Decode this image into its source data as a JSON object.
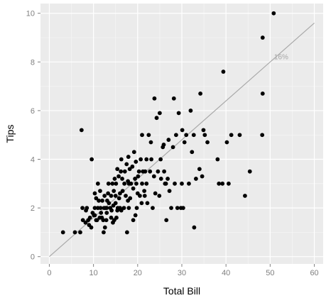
{
  "chart_data": {
    "type": "scatter",
    "title": "",
    "xlabel": "Total Bill",
    "ylabel": "Tips",
    "xlim": [
      -2,
      62
    ],
    "ylim": [
      -0.3,
      10.4
    ],
    "x_ticks": [
      0,
      10,
      20,
      30,
      40,
      50,
      60
    ],
    "y_ticks": [
      0,
      2,
      4,
      6,
      8,
      10
    ],
    "grid": true,
    "legend": "none",
    "colors": {
      "panel_background": "#ebebeb",
      "grid_major": "#ffffff",
      "grid_minor": "#f5f5f5",
      "points": "#000000",
      "reference_line": "#a9a9a9",
      "tick_label": "#7f7f7f",
      "annotation": "#a6a6a6"
    },
    "reference_line": {
      "slope": 0.16,
      "intercept": 0,
      "x_range": [
        0,
        60
      ],
      "label": "16%",
      "label_position": [
        52.5,
        8.2
      ]
    },
    "points": [
      [
        3.1,
        1.0
      ],
      [
        5.8,
        1.0
      ],
      [
        7.0,
        1.0
      ],
      [
        7.3,
        5.2
      ],
      [
        7.5,
        2.0
      ],
      [
        7.6,
        1.5
      ],
      [
        8.2,
        1.4
      ],
      [
        8.3,
        1.9
      ],
      [
        8.5,
        2.0
      ],
      [
        8.8,
        1.5
      ],
      [
        9.0,
        1.3
      ],
      [
        9.2,
        1.6
      ],
      [
        9.5,
        1.2
      ],
      [
        9.6,
        4.0
      ],
      [
        9.8,
        1.8
      ],
      [
        10.1,
        1.7
      ],
      [
        10.3,
        2.0
      ],
      [
        10.3,
        1.7
      ],
      [
        10.6,
        1.5
      ],
      [
        10.3,
        2.6
      ],
      [
        10.6,
        2.4
      ],
      [
        10.8,
        1.5
      ],
      [
        11.0,
        2.0
      ],
      [
        11.0,
        3.0
      ],
      [
        11.2,
        2.3
      ],
      [
        11.4,
        1.6
      ],
      [
        11.6,
        2.0
      ],
      [
        11.7,
        1.8
      ],
      [
        11.9,
        1.6
      ],
      [
        12.0,
        2.3
      ],
      [
        12.2,
        1.5
      ],
      [
        12.4,
        2.0
      ],
      [
        12.5,
        2.5
      ],
      [
        12.6,
        1.2
      ],
      [
        12.7,
        2.0
      ],
      [
        12.9,
        1.5
      ],
      [
        13.0,
        2.0
      ],
      [
        13.0,
        1.8
      ],
      [
        13.1,
        2.3
      ],
      [
        13.3,
        2.6
      ],
      [
        13.4,
        3.0
      ],
      [
        13.5,
        2.2
      ],
      [
        13.8,
        2.0
      ],
      [
        14.0,
        1.6
      ],
      [
        14.0,
        2.5
      ],
      [
        14.1,
        1.9
      ],
      [
        14.3,
        3.0
      ],
      [
        14.5,
        2.1
      ],
      [
        14.6,
        2.7
      ],
      [
        14.7,
        1.5
      ],
      [
        14.8,
        3.2
      ],
      [
        15.0,
        2.2
      ],
      [
        15.0,
        2.5
      ],
      [
        15.1,
        3.0
      ],
      [
        15.2,
        1.6
      ],
      [
        15.4,
        3.6
      ],
      [
        15.5,
        2.0
      ],
      [
        15.7,
        3.3
      ],
      [
        15.8,
        2.4
      ],
      [
        16.0,
        2.0
      ],
      [
        16.0,
        2.6
      ],
      [
        16.2,
        3.5
      ],
      [
        16.3,
        1.9
      ],
      [
        16.3,
        4.0
      ],
      [
        16.5,
        3.2
      ],
      [
        16.6,
        2.7
      ],
      [
        16.9,
        2.0
      ],
      [
        17.0,
        3.0
      ],
      [
        17.1,
        3.5
      ],
      [
        17.3,
        2.5
      ],
      [
        17.5,
        3.8
      ],
      [
        17.6,
        1.0
      ],
      [
        17.8,
        2.3
      ],
      [
        17.8,
        3.1
      ],
      [
        18.0,
        3.0
      ],
      [
        18.0,
        2.0
      ],
      [
        18.2,
        3.6
      ],
      [
        18.3,
        2.4
      ],
      [
        18.5,
        3.0
      ],
      [
        18.8,
        3.7
      ],
      [
        19.0,
        1.5
      ],
      [
        19.0,
        2.8
      ],
      [
        19.2,
        4.3
      ],
      [
        19.4,
        3.2
      ],
      [
        19.5,
        1.7
      ],
      [
        19.7,
        3.0
      ],
      [
        19.8,
        2.0
      ],
      [
        20.0,
        2.6
      ],
      [
        20.1,
        3.3
      ],
      [
        20.3,
        3.5
      ],
      [
        20.5,
        2.5
      ],
      [
        20.7,
        4.0
      ],
      [
        20.9,
        2.2
      ],
      [
        21.0,
        3.0
      ],
      [
        21.0,
        5.0
      ],
      [
        21.2,
        3.5
      ],
      [
        21.5,
        2.7
      ],
      [
        21.7,
        3.5
      ],
      [
        22.0,
        3.0
      ],
      [
        22.0,
        4.0
      ],
      [
        22.2,
        2.2
      ],
      [
        22.5,
        5.0
      ],
      [
        22.8,
        3.5
      ],
      [
        23.1,
        4.0
      ],
      [
        23.4,
        2.0
      ],
      [
        23.7,
        3.3
      ],
      [
        23.8,
        6.5
      ],
      [
        24.0,
        2.6
      ],
      [
        24.3,
        5.7
      ],
      [
        24.6,
        3.5
      ],
      [
        24.9,
        2.5
      ],
      [
        25.0,
        5.9
      ],
      [
        25.2,
        4.0
      ],
      [
        25.3,
        3.2
      ],
      [
        25.7,
        4.5
      ],
      [
        25.9,
        4.6
      ],
      [
        26.0,
        3.5
      ],
      [
        26.2,
        3.0
      ],
      [
        26.5,
        1.5
      ],
      [
        26.8,
        3.2
      ],
      [
        27.0,
        4.8
      ],
      [
        27.2,
        2.7
      ],
      [
        27.6,
        2.0
      ],
      [
        28.0,
        4.5
      ],
      [
        28.2,
        6.5
      ],
      [
        28.4,
        3.0
      ],
      [
        28.7,
        5.0
      ],
      [
        29.0,
        2.0
      ],
      [
        29.3,
        5.9
      ],
      [
        29.8,
        2.0
      ],
      [
        30.0,
        3.0
      ],
      [
        30.1,
        5.2
      ],
      [
        30.3,
        2.0
      ],
      [
        30.6,
        4.7
      ],
      [
        31.0,
        5.0
      ],
      [
        31.6,
        3.0
      ],
      [
        32.0,
        6.0
      ],
      [
        32.3,
        4.3
      ],
      [
        32.7,
        5.0
      ],
      [
        33.2,
        3.2
      ],
      [
        34.0,
        3.6
      ],
      [
        34.2,
        6.7
      ],
      [
        34.6,
        3.3
      ],
      [
        34.9,
        5.2
      ],
      [
        35.2,
        5.0
      ],
      [
        35.8,
        4.7
      ],
      [
        38.1,
        4.0
      ],
      [
        38.4,
        3.0
      ],
      [
        39.2,
        3.0
      ],
      [
        39.4,
        7.6
      ],
      [
        40.2,
        4.7
      ],
      [
        40.6,
        3.0
      ],
      [
        41.2,
        5.0
      ],
      [
        43.1,
        5.0
      ],
      [
        44.3,
        2.5
      ],
      [
        45.4,
        3.5
      ],
      [
        48.2,
        5.0
      ],
      [
        48.3,
        9.0
      ],
      [
        48.3,
        6.7
      ],
      [
        50.8,
        10.0
      ],
      [
        32.8,
        1.2
      ],
      [
        12.3,
        1.0
      ],
      [
        14.4,
        1.4
      ],
      [
        21.6,
        2.5
      ],
      [
        17.9,
        4.1
      ],
      [
        11.5,
        2.7
      ],
      [
        15.4,
        1.9
      ],
      [
        19.6,
        3.9
      ],
      [
        23.0,
        4.7
      ],
      [
        26.4,
        3.0
      ]
    ]
  }
}
